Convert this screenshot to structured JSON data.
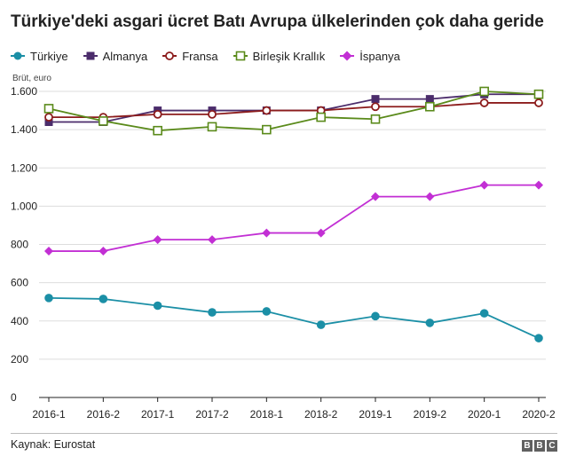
{
  "title": "Türkiye'deki asgari ücret Batı Avrupa ülkelerinden çok daha geride",
  "source": "Kaynak: Eurostat",
  "logo_letters": [
    "B",
    "B",
    "C"
  ],
  "chart_data": {
    "type": "line",
    "title": "Türkiye'deki asgari ücret Batı Avrupa ülkelerinden çok daha geride",
    "ylabel": "Brüt, euro",
    "xlabel": "",
    "categories": [
      "2016-1",
      "2016-2",
      "2017-1",
      "2017-2",
      "2018-1",
      "2018-2",
      "2019-1",
      "2019-2",
      "2020-1",
      "2020-2"
    ],
    "ylim": [
      0,
      1600
    ],
    "yticks": [
      0,
      200,
      400,
      600,
      800,
      1000,
      1200,
      1400,
      1600
    ],
    "ytick_labels": [
      "0",
      "200",
      "400",
      "600",
      "800",
      "1.000",
      "1.200",
      "1.400",
      "1.600"
    ],
    "grid": true,
    "legend_position": "top-left",
    "series": [
      {
        "name": "Türkiye",
        "color": "#1b8fa6",
        "marker": "circle",
        "values": [
          520,
          515,
          480,
          445,
          450,
          380,
          425,
          390,
          440,
          310
        ]
      },
      {
        "name": "Almanya",
        "color": "#4b2c6b",
        "marker": "square",
        "values": [
          1440,
          1440,
          1500,
          1500,
          1500,
          1500,
          1560,
          1560,
          1585,
          1585
        ]
      },
      {
        "name": "Fransa",
        "color": "#8c1c1c",
        "marker": "circle-open",
        "values": [
          1465,
          1465,
          1480,
          1480,
          1500,
          1500,
          1520,
          1520,
          1540,
          1540
        ]
      },
      {
        "name": "Birleşik Krallık",
        "color": "#5a8a1a",
        "marker": "square-open",
        "values": [
          1510,
          1445,
          1395,
          1415,
          1400,
          1465,
          1455,
          1520,
          1600,
          1585
        ]
      },
      {
        "name": "İspanya",
        "color": "#c22fd4",
        "marker": "diamond",
        "values": [
          765,
          765,
          825,
          825,
          860,
          860,
          1050,
          1050,
          1110,
          1110
        ]
      }
    ]
  }
}
